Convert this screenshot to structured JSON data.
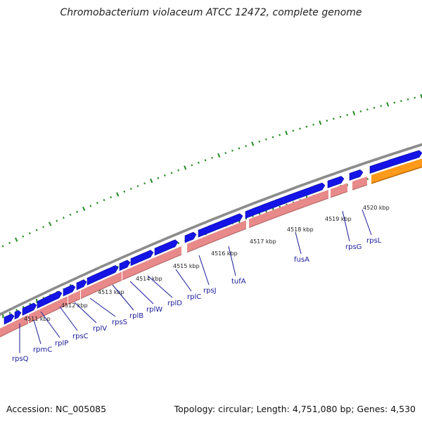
{
  "title": "Chromobacterium violaceum ATCC 12472, complete genome",
  "footer": {
    "accession": "Accession: NC_005085",
    "summary": "Topology: circular; Length: 4,751,080 bp; Genes: 4,530"
  },
  "colors": {
    "backbone": "#8c8c8c",
    "forward_gene": "#1414e6",
    "reverse_track": "#e88a8a",
    "rrna": "#ff9a1a",
    "ticks": "#228b22",
    "label": "#1a1a9a"
  },
  "kbp_labels": [
    "4511 kbp",
    "4512 kbp",
    "4513 kbp",
    "4514 kbp",
    "4515 kbp",
    "4516 kbp",
    "4517 kbp",
    "4518 kbp",
    "4519 kbp",
    "4520 kbp"
  ],
  "genes": [
    "rpsQ",
    "rpmC",
    "rplP",
    "rpsC",
    "rplV",
    "rpsS",
    "rplB",
    "rplW",
    "rplD",
    "rplC",
    "rpsJ",
    "tufA",
    "fusA",
    "rpsG",
    "rpsL"
  ]
}
